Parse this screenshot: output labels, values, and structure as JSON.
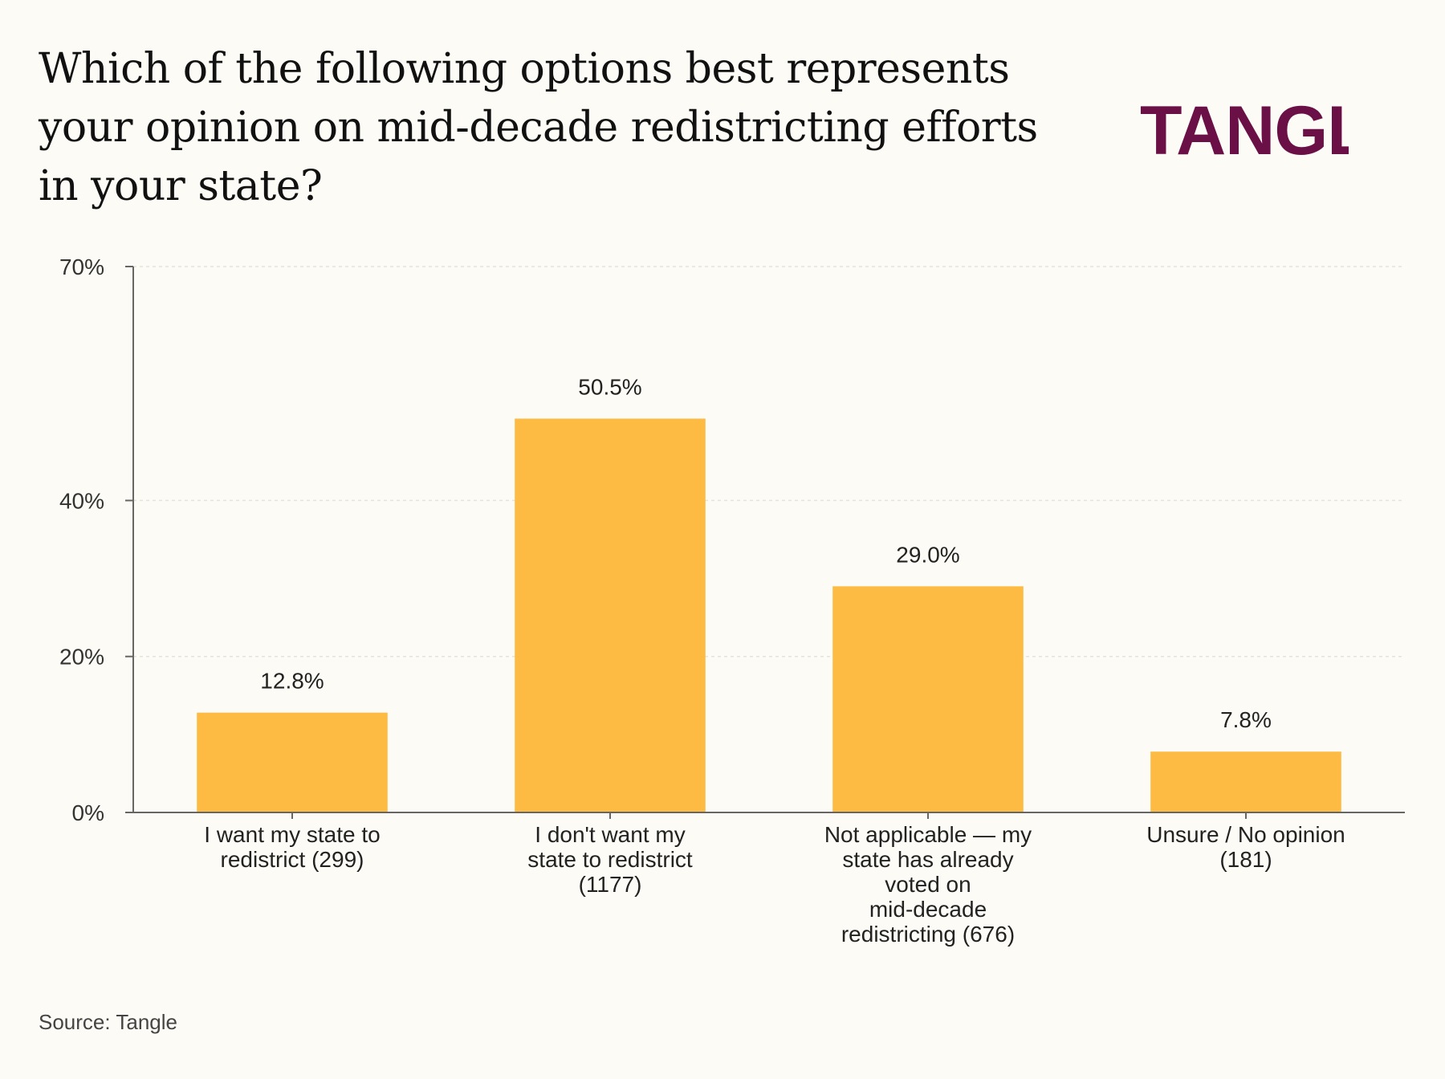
{
  "logo": {
    "text": "TANGLE",
    "color": "#6b0f47"
  },
  "source": "Source: Tangle",
  "chart_data": {
    "type": "bar",
    "title": "Which of the following options best represents your opinion on mid-decade redistricting efforts in your state?",
    "categories": [
      "I want my state to redistrict (299)",
      "I don't want my state to redistrict (1177)",
      "Not applicable — my state has already voted on mid-decade redistricting (676)",
      "Unsure / No opinion (181)"
    ],
    "category_lines": [
      [
        "I want my state to",
        "redistrict (299)"
      ],
      [
        "I don't want my",
        "state to redistrict",
        "(1177)"
      ],
      [
        "Not applicable — my",
        "state has already",
        "voted on",
        "mid-decade",
        "redistricting (676)"
      ],
      [
        "Unsure / No opinion",
        "(181)"
      ]
    ],
    "values": [
      12.8,
      50.5,
      29.0,
      7.8
    ],
    "value_labels": [
      "12.8%",
      "50.5%",
      "29.0%",
      "7.8%"
    ],
    "y_ticks": [
      0,
      20,
      40,
      70
    ],
    "y_tick_labels": [
      "0%",
      "20%",
      "40%",
      "70%"
    ],
    "ylim": [
      0,
      70
    ],
    "grid": true,
    "bar_color": "#fdbb43",
    "axis_color": "#666666",
    "grid_color": "#e6e4da"
  }
}
